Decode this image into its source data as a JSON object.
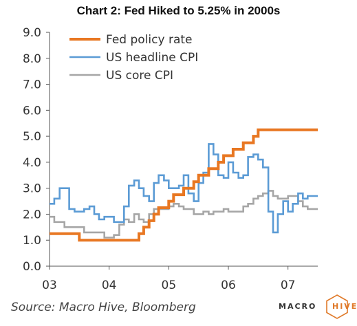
{
  "chart_data": {
    "type": "line",
    "title": "Chart 2: Fed Hiked to 5.25% in 2000s",
    "xlabel": "",
    "ylabel": "",
    "x_range": [
      2003.0,
      2007.5
    ],
    "ylim": [
      0,
      9
    ],
    "y_ticks": [
      "0.0",
      "1.0",
      "2.0",
      "3.0",
      "4.0",
      "5.0",
      "6.0",
      "7.0",
      "8.0",
      "9.0"
    ],
    "x_ticks": [
      {
        "label": "03",
        "value": 2003.0
      },
      {
        "label": "04",
        "value": 2004.0
      },
      {
        "label": "05",
        "value": 2005.0
      },
      {
        "label": "06",
        "value": 2006.0
      },
      {
        "label": "07",
        "value": 2007.0
      }
    ],
    "grid": false,
    "legend_position": "top-left",
    "series": [
      {
        "name": "Fed policy rate",
        "color": "#E87722",
        "step": true,
        "points": [
          [
            2003.0,
            1.25
          ],
          [
            2003.5,
            1.0
          ],
          [
            2004.5,
            1.25
          ],
          [
            2004.58,
            1.5
          ],
          [
            2004.67,
            1.75
          ],
          [
            2004.75,
            2.0
          ],
          [
            2004.83,
            2.25
          ],
          [
            2004.92,
            2.25
          ],
          [
            2005.0,
            2.5
          ],
          [
            2005.08,
            2.75
          ],
          [
            2005.17,
            2.75
          ],
          [
            2005.25,
            3.0
          ],
          [
            2005.42,
            3.25
          ],
          [
            2005.5,
            3.5
          ],
          [
            2005.58,
            3.5
          ],
          [
            2005.67,
            3.75
          ],
          [
            2005.83,
            4.0
          ],
          [
            2005.92,
            4.25
          ],
          [
            2006.08,
            4.5
          ],
          [
            2006.25,
            4.75
          ],
          [
            2006.42,
            5.0
          ],
          [
            2006.5,
            5.25
          ],
          [
            2007.5,
            5.25
          ]
        ]
      },
      {
        "name": "US headline CPI",
        "color": "#5B9BD5",
        "step": true,
        "points": [
          [
            2003.0,
            2.4
          ],
          [
            2003.08,
            2.6
          ],
          [
            2003.17,
            3.0
          ],
          [
            2003.33,
            2.2
          ],
          [
            2003.42,
            2.1
          ],
          [
            2003.58,
            2.2
          ],
          [
            2003.67,
            2.3
          ],
          [
            2003.75,
            2.0
          ],
          [
            2003.83,
            1.8
          ],
          [
            2003.92,
            1.9
          ],
          [
            2004.0,
            1.9
          ],
          [
            2004.08,
            1.7
          ],
          [
            2004.17,
            1.7
          ],
          [
            2004.25,
            2.3
          ],
          [
            2004.33,
            3.1
          ],
          [
            2004.42,
            3.3
          ],
          [
            2004.5,
            3.0
          ],
          [
            2004.58,
            2.7
          ],
          [
            2004.67,
            2.5
          ],
          [
            2004.75,
            3.2
          ],
          [
            2004.83,
            3.5
          ],
          [
            2004.92,
            3.3
          ],
          [
            2005.0,
            3.0
          ],
          [
            2005.08,
            3.0
          ],
          [
            2005.17,
            3.1
          ],
          [
            2005.25,
            3.5
          ],
          [
            2005.33,
            2.8
          ],
          [
            2005.42,
            2.5
          ],
          [
            2005.5,
            3.2
          ],
          [
            2005.58,
            3.6
          ],
          [
            2005.67,
            4.7
          ],
          [
            2005.75,
            4.3
          ],
          [
            2005.83,
            3.5
          ],
          [
            2005.92,
            3.4
          ],
          [
            2006.0,
            4.0
          ],
          [
            2006.08,
            3.6
          ],
          [
            2006.17,
            3.4
          ],
          [
            2006.25,
            3.5
          ],
          [
            2006.33,
            4.2
          ],
          [
            2006.42,
            4.3
          ],
          [
            2006.5,
            4.1
          ],
          [
            2006.58,
            3.8
          ],
          [
            2006.67,
            2.1
          ],
          [
            2006.75,
            1.3
          ],
          [
            2006.83,
            2.0
          ],
          [
            2006.92,
            2.5
          ],
          [
            2007.0,
            2.1
          ],
          [
            2007.08,
            2.4
          ],
          [
            2007.17,
            2.8
          ],
          [
            2007.25,
            2.6
          ],
          [
            2007.33,
            2.7
          ],
          [
            2007.42,
            2.7
          ],
          [
            2007.5,
            2.7
          ]
        ]
      },
      {
        "name": "US core CPI",
        "color": "#A6A6A6",
        "step": true,
        "points": [
          [
            2003.0,
            1.9
          ],
          [
            2003.08,
            1.7
          ],
          [
            2003.17,
            1.7
          ],
          [
            2003.25,
            1.5
          ],
          [
            2003.42,
            1.5
          ],
          [
            2003.5,
            1.5
          ],
          [
            2003.58,
            1.3
          ],
          [
            2003.75,
            1.3
          ],
          [
            2003.83,
            1.3
          ],
          [
            2003.92,
            1.1
          ],
          [
            2004.0,
            1.1
          ],
          [
            2004.08,
            1.2
          ],
          [
            2004.17,
            1.6
          ],
          [
            2004.25,
            1.8
          ],
          [
            2004.33,
            1.7
          ],
          [
            2004.42,
            2.0
          ],
          [
            2004.5,
            1.8
          ],
          [
            2004.58,
            1.7
          ],
          [
            2004.67,
            2.0
          ],
          [
            2004.75,
            2.2
          ],
          [
            2004.83,
            2.2
          ],
          [
            2004.92,
            2.2
          ],
          [
            2005.0,
            2.3
          ],
          [
            2005.08,
            2.4
          ],
          [
            2005.17,
            2.3
          ],
          [
            2005.25,
            2.2
          ],
          [
            2005.33,
            2.2
          ],
          [
            2005.42,
            2.0
          ],
          [
            2005.5,
            2.0
          ],
          [
            2005.58,
            2.1
          ],
          [
            2005.67,
            2.0
          ],
          [
            2005.75,
            2.1
          ],
          [
            2005.83,
            2.1
          ],
          [
            2005.92,
            2.2
          ],
          [
            2006.0,
            2.1
          ],
          [
            2006.08,
            2.1
          ],
          [
            2006.17,
            2.1
          ],
          [
            2006.25,
            2.3
          ],
          [
            2006.33,
            2.4
          ],
          [
            2006.42,
            2.6
          ],
          [
            2006.5,
            2.7
          ],
          [
            2006.58,
            2.8
          ],
          [
            2006.67,
            2.9
          ],
          [
            2006.75,
            2.7
          ],
          [
            2006.83,
            2.6
          ],
          [
            2006.92,
            2.6
          ],
          [
            2007.0,
            2.7
          ],
          [
            2007.08,
            2.7
          ],
          [
            2007.17,
            2.5
          ],
          [
            2007.25,
            2.3
          ],
          [
            2007.33,
            2.2
          ],
          [
            2007.42,
            2.2
          ],
          [
            2007.5,
            2.2
          ]
        ]
      }
    ]
  },
  "source_note": "Source: Macro Hive, Bloomberg",
  "logo": {
    "text_left": "MACRO",
    "text_right": "HIVE",
    "accent_color": "#E07A2A"
  }
}
